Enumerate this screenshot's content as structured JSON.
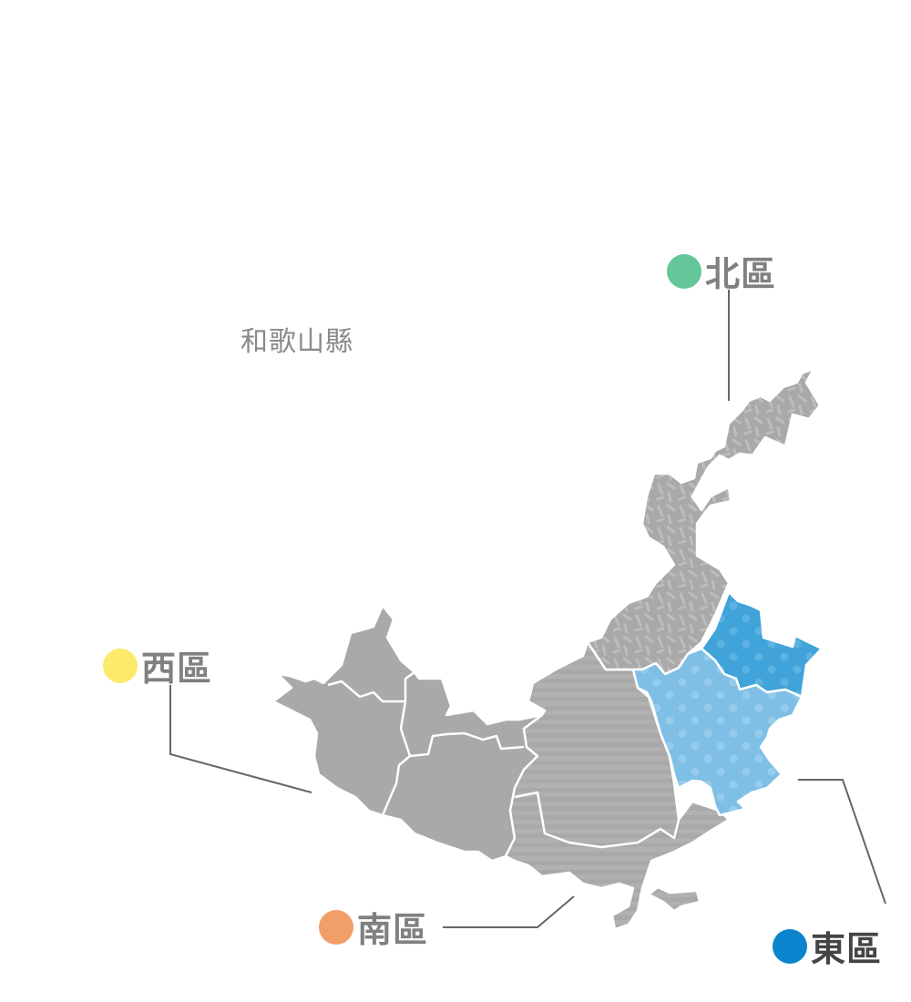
{
  "map": {
    "prefecture_label": "和歌山縣",
    "regions": [
      {
        "key": "north",
        "label": "北區",
        "color": "#66c69b",
        "fill": "#a9a9a9",
        "pattern": "dashes"
      },
      {
        "key": "west",
        "label": "西區",
        "color": "#fdea6a",
        "fill": "#a9a9a9",
        "pattern": "none"
      },
      {
        "key": "south",
        "label": "南區",
        "color": "#f29e68",
        "fill": "#a9a9a9",
        "pattern": "stripes"
      },
      {
        "key": "east",
        "label": "東區",
        "color": "#0a84cc",
        "fill": "#7fbfe6",
        "pattern": "dots"
      }
    ]
  }
}
